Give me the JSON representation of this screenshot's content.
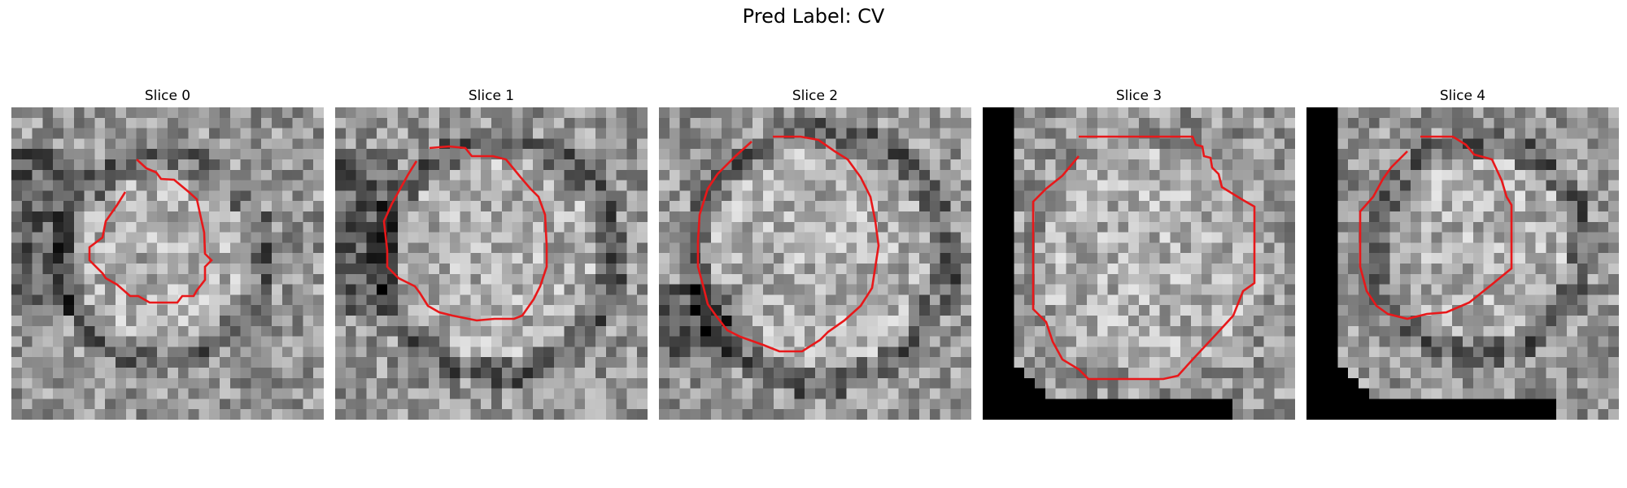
{
  "figure": {
    "title": "Pred Label: CV"
  },
  "slices": [
    {
      "label": "Slice 0"
    },
    {
      "label": "Slice 1"
    },
    {
      "label": "Slice 2"
    },
    {
      "label": "Slice 3"
    },
    {
      "label": "Slice 4"
    }
  ],
  "colors": {
    "contour": "#e8181a",
    "background": "#ffffff"
  }
}
